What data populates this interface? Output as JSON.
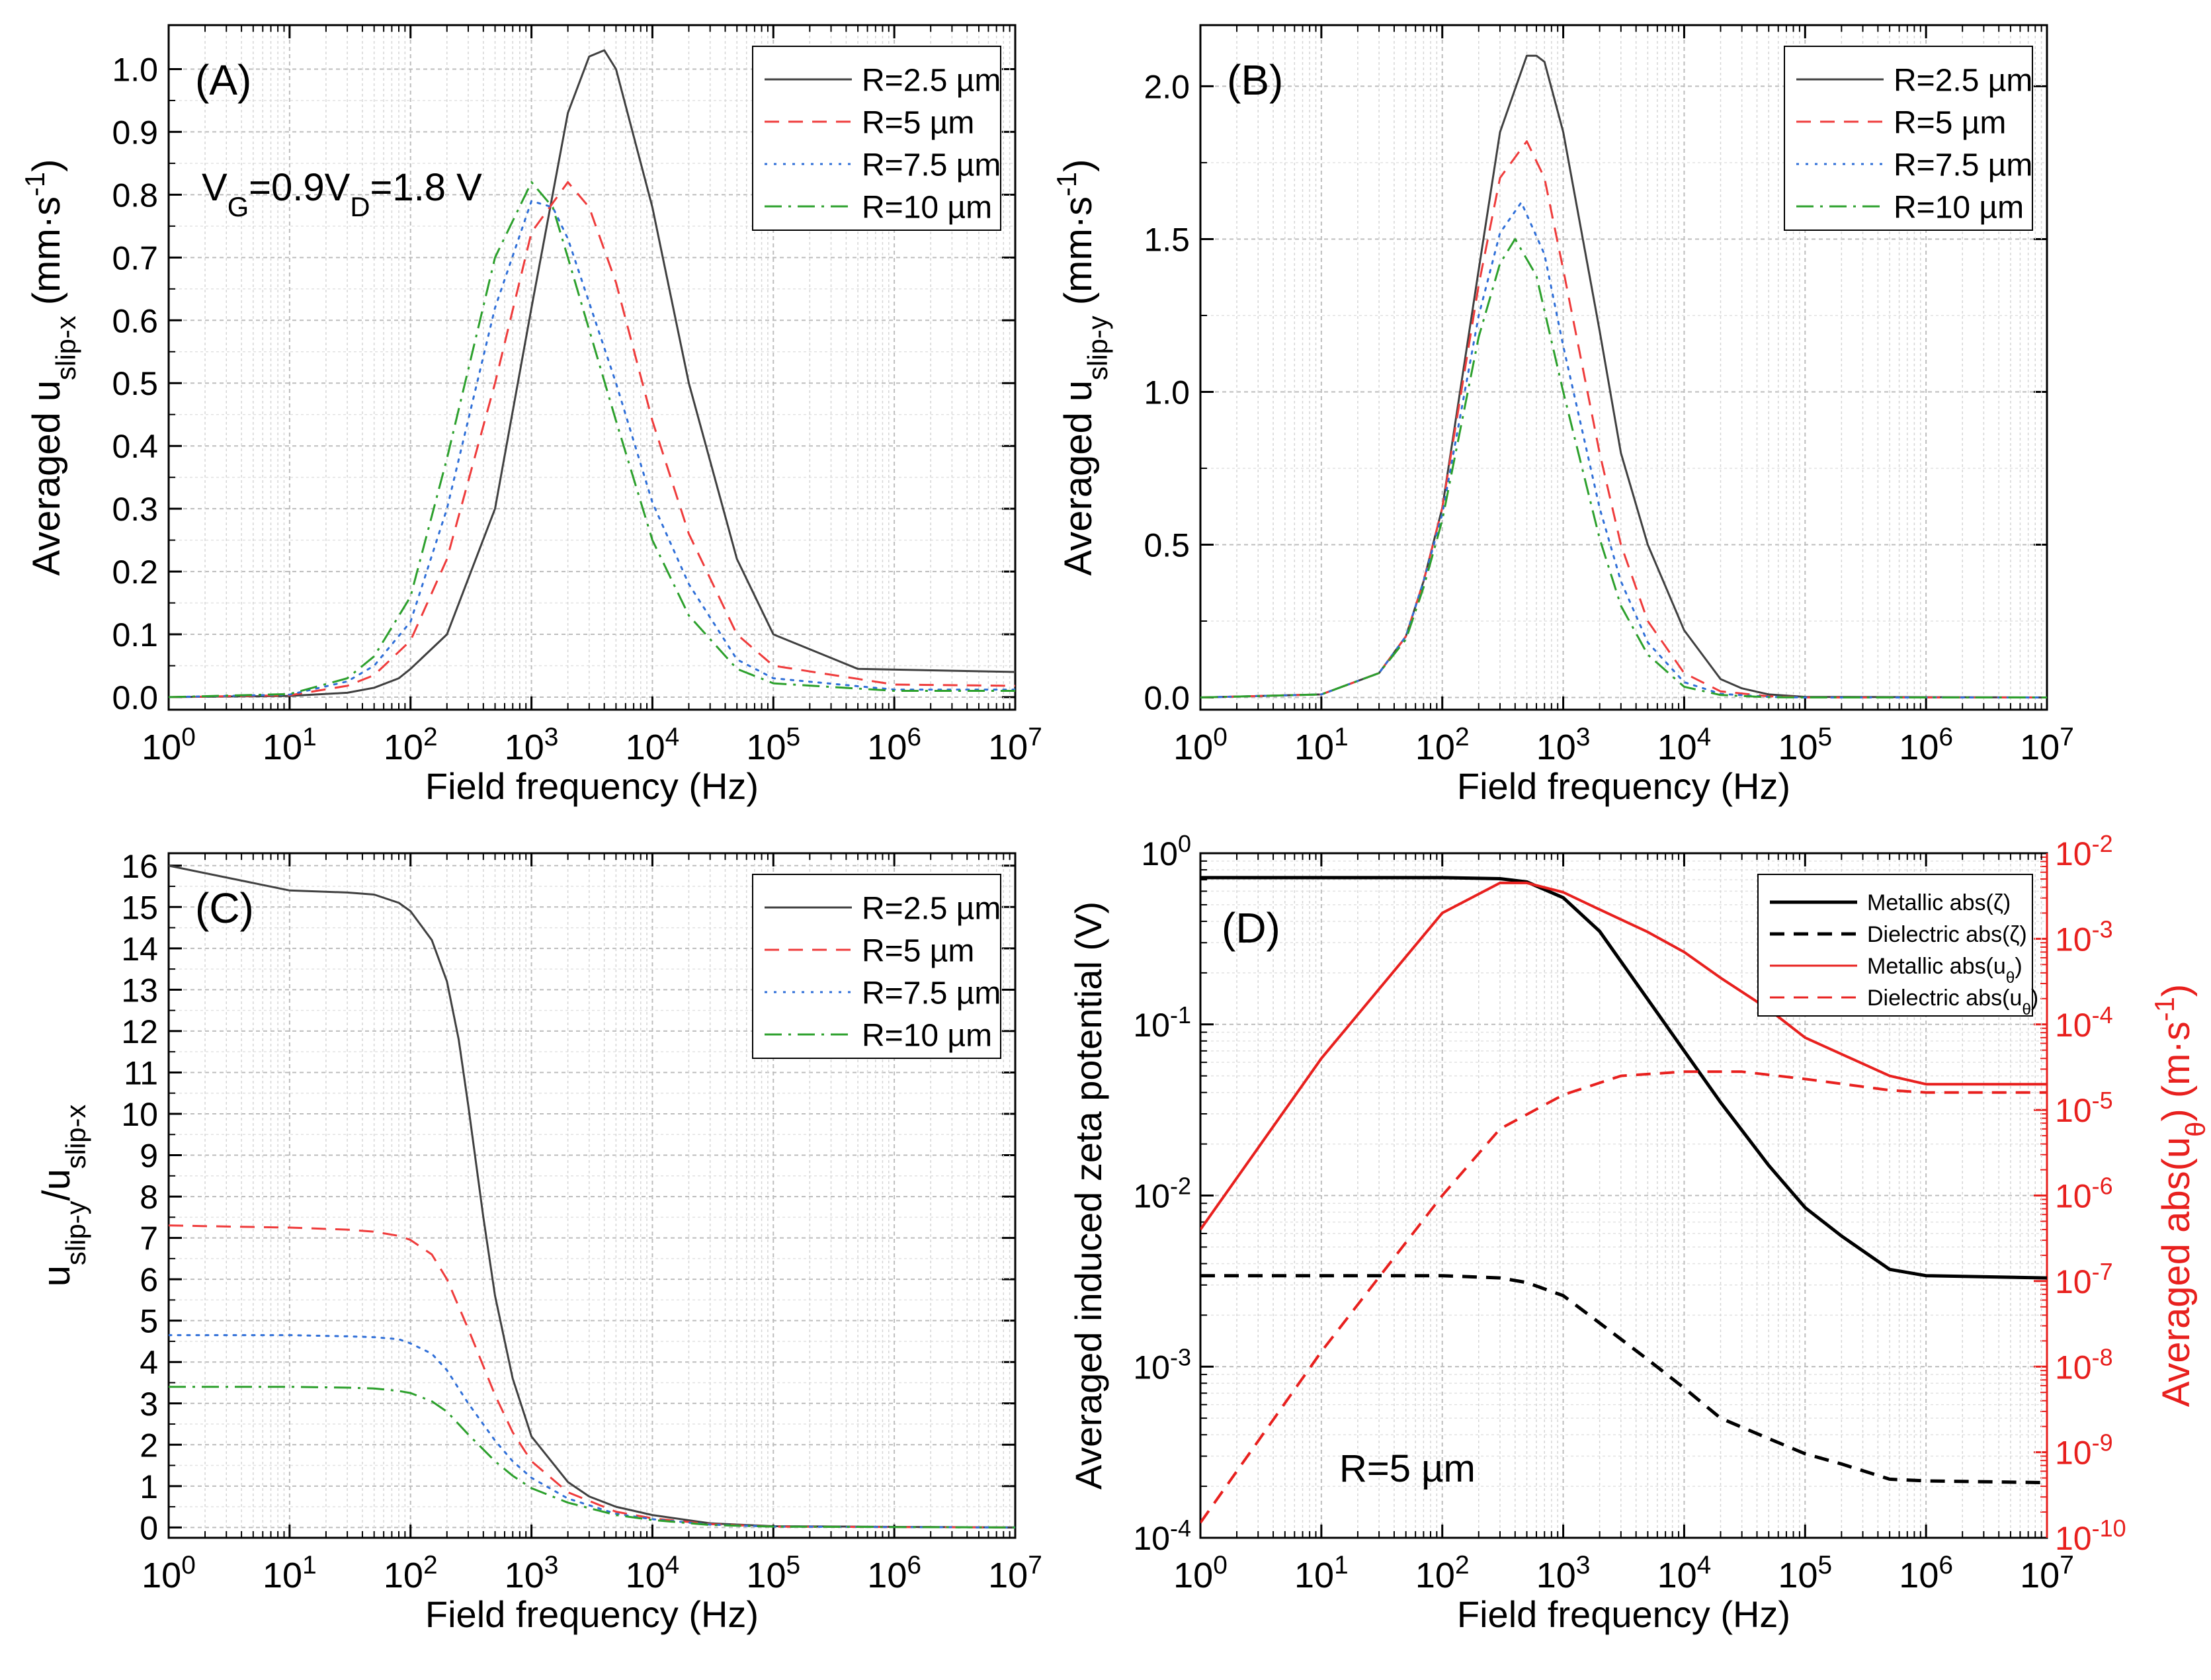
{
  "colors": {
    "r25": "#404040",
    "r5": "#ef3b3b",
    "r75": "#2f6fd8",
    "r10": "#2ca02c",
    "axis": "#000000",
    "right": "#e8201e"
  },
  "xaxis_label": "Field frequency (Hz)",
  "chart_data": [
    {
      "id": "A",
      "type": "line",
      "panel_label": "(A)",
      "annotation": {
        "main": "V",
        "sub1": "G",
        "mid": "=0.9V",
        "sub2": "D",
        "tail": "=1.8 V"
      },
      "ylabel": {
        "pre": "Averaged u",
        "sub": "slip-x",
        "post": " (mm·s",
        "sup": "-1",
        "end": ")"
      },
      "xscale": "log",
      "xlim": [
        1,
        10000000
      ],
      "ylim": [
        -0.02,
        1.07
      ],
      "yticks": [
        0,
        0.1,
        0.2,
        0.3,
        0.4,
        0.5,
        0.6,
        0.7,
        0.8,
        0.9,
        1.0
      ],
      "ytick_labels": [
        "0.0",
        "0.1",
        "0.2",
        "0.3",
        "0.4",
        "0.5",
        "0.6",
        "0.7",
        "0.8",
        "0.9",
        "1.0"
      ],
      "legend": "top-right",
      "series": [
        {
          "name": "R=2.5 µm",
          "style": "solid",
          "color_key": "r25",
          "x": [
            1,
            10,
            30,
            50,
            80,
            100,
            200,
            500,
            1000,
            2000,
            3000,
            4000,
            5000,
            10000,
            20000,
            50000,
            100000,
            500000,
            10000000
          ],
          "y": [
            0,
            0.002,
            0.007,
            0.015,
            0.03,
            0.045,
            0.1,
            0.3,
            0.62,
            0.93,
            1.02,
            1.03,
            1.0,
            0.78,
            0.5,
            0.22,
            0.1,
            0.045,
            0.04
          ]
        },
        {
          "name": "R=5 µm",
          "style": "dash",
          "color_key": "r5",
          "x": [
            1,
            10,
            30,
            50,
            100,
            200,
            500,
            1000,
            2000,
            3000,
            5000,
            10000,
            20000,
            50000,
            100000,
            1000000,
            10000000
          ],
          "y": [
            0,
            0.003,
            0.018,
            0.035,
            0.09,
            0.22,
            0.5,
            0.74,
            0.82,
            0.78,
            0.66,
            0.44,
            0.26,
            0.1,
            0.05,
            0.02,
            0.018
          ]
        },
        {
          "name": "R=7.5 µm",
          "style": "dot",
          "color_key": "r75",
          "x": [
            1,
            10,
            30,
            50,
            100,
            200,
            500,
            1000,
            1500,
            2000,
            5000,
            10000,
            20000,
            50000,
            100000,
            1000000,
            10000000
          ],
          "y": [
            0,
            0.004,
            0.025,
            0.05,
            0.12,
            0.3,
            0.62,
            0.79,
            0.78,
            0.73,
            0.5,
            0.31,
            0.18,
            0.06,
            0.03,
            0.012,
            0.012
          ]
        },
        {
          "name": "R=10 µm",
          "style": "dashdot",
          "color_key": "r10",
          "x": [
            1,
            10,
            30,
            50,
            100,
            200,
            500,
            1000,
            1500,
            2000,
            5000,
            10000,
            20000,
            50000,
            100000,
            1000000,
            10000000
          ],
          "y": [
            0,
            0.005,
            0.03,
            0.065,
            0.16,
            0.38,
            0.7,
            0.82,
            0.78,
            0.7,
            0.44,
            0.25,
            0.13,
            0.045,
            0.022,
            0.01,
            0.01
          ]
        }
      ]
    },
    {
      "id": "B",
      "type": "line",
      "panel_label": "(B)",
      "ylabel": {
        "pre": "Averaged u",
        "sub": "slip-y",
        "post": " (mm·s",
        "sup": "-1",
        "end": ")"
      },
      "xscale": "log",
      "xlim": [
        1,
        10000000
      ],
      "ylim": [
        -0.04,
        2.2
      ],
      "yticks": [
        0,
        0.5,
        1.0,
        1.5,
        2.0
      ],
      "ytick_labels": [
        "0.0",
        "0.5",
        "1.0",
        "1.5",
        "2.0"
      ],
      "legend": "top-right",
      "series": [
        {
          "name": "R=2.5 µm",
          "style": "solid",
          "color_key": "r25",
          "x": [
            1,
            10,
            30,
            50,
            70,
            100,
            200,
            300,
            500,
            600,
            700,
            1000,
            2000,
            3000,
            5000,
            10000,
            20000,
            30000,
            50000,
            100000,
            10000000
          ],
          "y": [
            0,
            0.01,
            0.08,
            0.2,
            0.38,
            0.62,
            1.4,
            1.85,
            2.1,
            2.1,
            2.08,
            1.85,
            1.2,
            0.8,
            0.5,
            0.22,
            0.06,
            0.03,
            0.01,
            0.002,
            0
          ]
        },
        {
          "name": "R=5 µm",
          "style": "dash",
          "color_key": "r5",
          "x": [
            1,
            10,
            30,
            50,
            70,
            100,
            200,
            300,
            500,
            700,
            1000,
            2000,
            3000,
            5000,
            10000,
            20000,
            50000,
            100000,
            10000000
          ],
          "y": [
            0,
            0.01,
            0.08,
            0.2,
            0.38,
            0.62,
            1.35,
            1.7,
            1.82,
            1.7,
            1.4,
            0.8,
            0.5,
            0.25,
            0.08,
            0.02,
            0.004,
            0,
            0
          ]
        },
        {
          "name": "R=7.5 µm",
          "style": "dot",
          "color_key": "r75",
          "x": [
            1,
            10,
            30,
            50,
            70,
            100,
            200,
            300,
            450,
            700,
            1000,
            2000,
            3000,
            5000,
            10000,
            20000,
            50000,
            100000,
            10000000
          ],
          "y": [
            0,
            0.01,
            0.08,
            0.2,
            0.38,
            0.6,
            1.25,
            1.52,
            1.62,
            1.45,
            1.15,
            0.62,
            0.38,
            0.18,
            0.05,
            0.012,
            0.002,
            0,
            0
          ]
        },
        {
          "name": "R=10 µm",
          "style": "dashdot",
          "color_key": "r10",
          "x": [
            1,
            10,
            30,
            50,
            70,
            100,
            200,
            300,
            400,
            600,
            1000,
            2000,
            3000,
            5000,
            10000,
            20000,
            50000,
            100000,
            10000000
          ],
          "y": [
            0,
            0.01,
            0.08,
            0.19,
            0.36,
            0.58,
            1.18,
            1.42,
            1.5,
            1.38,
            1.0,
            0.52,
            0.3,
            0.14,
            0.035,
            0.008,
            0.001,
            0,
            0
          ]
        }
      ]
    },
    {
      "id": "C",
      "type": "line",
      "panel_label": "(C)",
      "ylabel": {
        "pre": "u",
        "sub": "slip-y",
        "mid": "/u",
        "sub2": "slip-x"
      },
      "xscale": "log",
      "xlim": [
        1,
        10000000
      ],
      "ylim": [
        -0.25,
        16.3
      ],
      "yticks": [
        0,
        1,
        2,
        3,
        4,
        5,
        6,
        7,
        8,
        9,
        10,
        11,
        12,
        13,
        14,
        15,
        16
      ],
      "ytick_labels": [
        "0",
        "1",
        "2",
        "3",
        "4",
        "5",
        "6",
        "7",
        "8",
        "9",
        "10",
        "11",
        "12",
        "13",
        "14",
        "15",
        "16"
      ],
      "legend": "top-right",
      "series": [
        {
          "name": "R=2.5 µm",
          "style": "solid",
          "color_key": "r25",
          "x": [
            1,
            10,
            30,
            50,
            80,
            100,
            150,
            200,
            250,
            300,
            400,
            500,
            700,
            1000,
            2000,
            3000,
            5000,
            10000,
            30000,
            100000,
            10000000
          ],
          "y": [
            16,
            15.4,
            15.35,
            15.3,
            15.1,
            14.9,
            14.2,
            13.2,
            11.8,
            10.2,
            7.5,
            5.6,
            3.6,
            2.2,
            1.1,
            0.75,
            0.5,
            0.3,
            0.1,
            0.03,
            0
          ]
        },
        {
          "name": "R=5 µm",
          "style": "dash",
          "color_key": "r5",
          "x": [
            1,
            10,
            30,
            50,
            80,
            100,
            150,
            200,
            300,
            500,
            700,
            1000,
            2000,
            5000,
            10000,
            30000,
            100000,
            10000000
          ],
          "y": [
            7.3,
            7.25,
            7.2,
            7.15,
            7.05,
            6.95,
            6.6,
            6.0,
            4.8,
            3.2,
            2.3,
            1.6,
            0.85,
            0.38,
            0.22,
            0.08,
            0.02,
            0
          ]
        },
        {
          "name": "R=7.5 µm",
          "style": "dot",
          "color_key": "r75",
          "x": [
            1,
            10,
            30,
            50,
            80,
            100,
            150,
            200,
            300,
            500,
            700,
            1000,
            2000,
            5000,
            10000,
            30000,
            100000,
            10000000
          ],
          "y": [
            4.65,
            4.65,
            4.62,
            4.6,
            4.55,
            4.45,
            4.2,
            3.8,
            3.0,
            2.1,
            1.6,
            1.2,
            0.7,
            0.33,
            0.2,
            0.07,
            0.02,
            0
          ]
        },
        {
          "name": "R=10 µm",
          "style": "dashdot",
          "color_key": "r10",
          "x": [
            1,
            10,
            30,
            50,
            80,
            100,
            150,
            200,
            300,
            500,
            700,
            1000,
            2000,
            5000,
            10000,
            30000,
            100000,
            10000000
          ],
          "y": [
            3.4,
            3.4,
            3.38,
            3.36,
            3.3,
            3.25,
            3.05,
            2.8,
            2.25,
            1.6,
            1.25,
            0.95,
            0.6,
            0.3,
            0.18,
            0.06,
            0.02,
            0
          ]
        }
      ]
    },
    {
      "id": "D",
      "type": "line",
      "panel_label": "(D)",
      "note": "R=5 µm",
      "ylabel_left": "Averaged induced zeta potential (V)",
      "ylabel_right": {
        "pre": "Averaged abs(u",
        "sub": "θ",
        "post": ") (m·s",
        "sup": "-1",
        "end": ")"
      },
      "xscale": "log",
      "xlim": [
        1,
        10000000
      ],
      "ylim_left": [
        0.0001,
        1
      ],
      "ylim_right": [
        1e-10,
        0.01
      ],
      "yticks_left_exp": [
        0,
        -1,
        -2,
        -3,
        -4
      ],
      "yticks_right_exp": [
        -2,
        -3,
        -4,
        -5,
        -6,
        -7,
        -8,
        -9,
        -10
      ],
      "legend": "top-right",
      "series": [
        {
          "name": "Metallic abs(ζ)",
          "style": "solid",
          "color_key": "axis",
          "axis": "left",
          "x": [
            1,
            10,
            100,
            300,
            500,
            1000,
            2000,
            5000,
            10000,
            20000,
            50000,
            100000,
            200000,
            500000,
            1000000,
            10000000
          ],
          "y": [
            0.72,
            0.72,
            0.72,
            0.71,
            0.68,
            0.55,
            0.35,
            0.14,
            0.07,
            0.035,
            0.015,
            0.0085,
            0.0058,
            0.0037,
            0.0034,
            0.0033
          ]
        },
        {
          "name": "Dielectric abs(ζ)",
          "style": "dash",
          "color_key": "axis",
          "axis": "left",
          "x": [
            1,
            10,
            100,
            300,
            500,
            1000,
            2000,
            5000,
            10000,
            20000,
            50000,
            100000,
            200000,
            500000,
            1000000,
            10000000
          ],
          "y": [
            0.0034,
            0.0034,
            0.0034,
            0.0033,
            0.0031,
            0.0026,
            0.0018,
            0.0011,
            0.00075,
            0.0005,
            0.00038,
            0.00031,
            0.00027,
            0.00022,
            0.000215,
            0.00021
          ]
        },
        {
          "name": "Metallic abs(uθ)",
          "style": "solid",
          "color_key": "right",
          "axis": "right",
          "x": [
            1,
            10,
            100,
            300,
            500,
            1000,
            2000,
            5000,
            10000,
            20000,
            50000,
            100000,
            500000,
            1000000,
            10000000
          ],
          "y": [
            4e-07,
            4e-05,
            0.002,
            0.0045,
            0.0045,
            0.0035,
            0.0022,
            0.0012,
            0.0007,
            0.00035,
            0.00015,
            7e-05,
            2.5e-05,
            2e-05,
            2e-05
          ]
        },
        {
          "name": "Dielectric abs(uθ)",
          "style": "dash",
          "color_key": "right",
          "axis": "right",
          "x": [
            1,
            10,
            100,
            300,
            1000,
            3000,
            10000,
            30000,
            100000,
            500000,
            1000000,
            10000000
          ],
          "y": [
            1.5e-10,
            1.5e-08,
            1e-06,
            6e-06,
            1.5e-05,
            2.5e-05,
            2.8e-05,
            2.8e-05,
            2.3e-05,
            1.7e-05,
            1.6e-05,
            1.6e-05
          ]
        }
      ]
    }
  ]
}
